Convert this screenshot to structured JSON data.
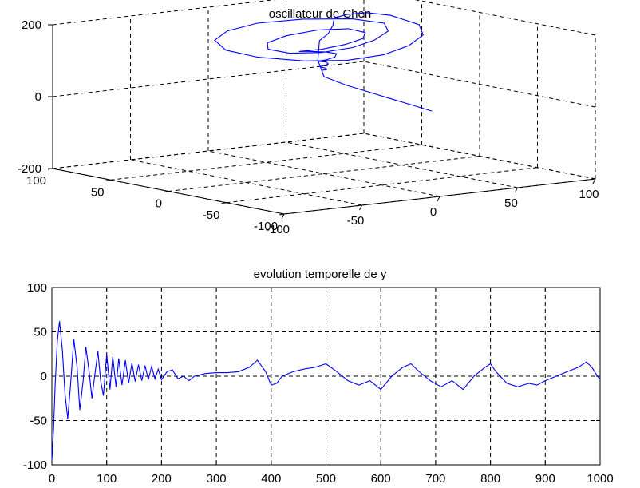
{
  "chart_data": [
    {
      "type": "line3d",
      "title": "oscillateur de Chen",
      "xlim": [
        -100,
        100
      ],
      "ylim": [
        -100,
        100
      ],
      "zlim": [
        -200,
        200
      ],
      "x_ticks": [
        "-100",
        "-50",
        "0",
        "50",
        "100"
      ],
      "y_ticks": [
        "-100",
        "-50",
        "0",
        "50",
        "100"
      ],
      "z_ticks": [
        "-200",
        "0",
        "200"
      ],
      "grid": true,
      "series": [
        {
          "color": "#0000ff",
          "points": [
            [
              -5,
              -100,
              40
            ],
            [
              -4,
              -80,
              45
            ],
            [
              -3,
              -60,
              50
            ],
            [
              -2,
              -40,
              55
            ],
            [
              -1,
              -20,
              60
            ],
            [
              0,
              0,
              70
            ],
            [
              2,
              8,
              110
            ],
            [
              6,
              12,
              160
            ],
            [
              16,
              18,
              170
            ],
            [
              28,
              30,
              180
            ],
            [
              40,
              45,
              185
            ],
            [
              56,
              56,
              180
            ],
            [
              72,
              60,
              175
            ],
            [
              80,
              50,
              170
            ],
            [
              76,
              20,
              165
            ],
            [
              60,
              -5,
              160
            ],
            [
              36,
              -25,
              155
            ],
            [
              10,
              -38,
              150
            ],
            [
              -15,
              -40,
              148
            ],
            [
              -35,
              -30,
              150
            ],
            [
              -50,
              -10,
              155
            ],
            [
              -52,
              15,
              160
            ],
            [
              -42,
              38,
              168
            ],
            [
              -25,
              50,
              178
            ],
            [
              -2,
              55,
              185
            ],
            [
              25,
              52,
              185
            ],
            [
              48,
              40,
              182
            ],
            [
              55,
              22,
              178
            ],
            [
              45,
              5,
              172
            ],
            [
              25,
              -10,
              166
            ],
            [
              5,
              -18,
              160
            ],
            [
              -15,
              -18,
              156
            ],
            [
              -28,
              -8,
              154
            ],
            [
              -30,
              8,
              156
            ],
            [
              -20,
              22,
              160
            ],
            [
              -2,
              30,
              166
            ],
            [
              18,
              30,
              172
            ],
            [
              32,
              22,
              174
            ],
            [
              34,
              10,
              170
            ],
            [
              25,
              0,
              164
            ],
            [
              10,
              -5,
              158
            ],
            [
              -5,
              -5,
              152
            ],
            [
              -12,
              2,
              146
            ],
            [
              -10,
              8,
              140
            ],
            [
              -2,
              10,
              135
            ],
            [
              6,
              6,
              132
            ],
            [
              8,
              0,
              130
            ],
            [
              4,
              -4,
              125
            ],
            [
              -2,
              -4,
              120
            ],
            [
              -4,
              0,
              115
            ],
            [
              0,
              3,
              110
            ],
            [
              3,
              2,
              108
            ],
            [
              2,
              -1,
              105
            ],
            [
              -1,
              -1,
              102
            ],
            [
              -2,
              1,
              98
            ],
            [
              0,
              2,
              95
            ],
            [
              2,
              1,
              92
            ],
            [
              1,
              -1,
              90
            ],
            [
              -1,
              0,
              88
            ]
          ]
        }
      ]
    },
    {
      "type": "line",
      "title": "evolution temporelle de y",
      "xlim": [
        0,
        1000
      ],
      "ylim": [
        -100,
        100
      ],
      "x_ticks": [
        "0",
        "100",
        "200",
        "300",
        "400",
        "500",
        "600",
        "700",
        "800",
        "900",
        "1000"
      ],
      "y_ticks": [
        "-100",
        "-50",
        "0",
        "50",
        "100"
      ],
      "grid": true,
      "series": [
        {
          "color": "#0000ff",
          "x": [
            0,
            3,
            6,
            10,
            14,
            19,
            24,
            29,
            34,
            40,
            46,
            51,
            57,
            62,
            68,
            73,
            78,
            84,
            89,
            94,
            100,
            106,
            111,
            117,
            122,
            128,
            134,
            140,
            146,
            152,
            158,
            164,
            170,
            176,
            182,
            188,
            194,
            200,
            210,
            220,
            230,
            240,
            250,
            260,
            280,
            300,
            320,
            340,
            360,
            375,
            390,
            400,
            410,
            420,
            440,
            460,
            480,
            500,
            520,
            540,
            560,
            580,
            600,
            620,
            640,
            655,
            670,
            690,
            710,
            730,
            750,
            770,
            790,
            800,
            810,
            830,
            850,
            870,
            885,
            900,
            920,
            940,
            960,
            975,
            985,
            995,
            1000
          ],
          "y": [
            -95,
            -60,
            -10,
            40,
            62,
            30,
            -20,
            -48,
            -10,
            42,
            10,
            -38,
            -5,
            33,
            5,
            -25,
            0,
            28,
            -5,
            -22,
            25,
            -15,
            22,
            -12,
            20,
            -10,
            18,
            -8,
            15,
            -6,
            13,
            -5,
            12,
            -4,
            11,
            -3,
            8,
            -4,
            5,
            7,
            -3,
            0,
            -5,
            0,
            3,
            4,
            4,
            5,
            10,
            18,
            5,
            -10,
            -8,
            0,
            5,
            8,
            10,
            14,
            5,
            -5,
            -10,
            -5,
            -15,
            0,
            10,
            14,
            5,
            -5,
            -12,
            -5,
            -15,
            0,
            10,
            14,
            5,
            -8,
            -12,
            -8,
            -10,
            -5,
            0,
            5,
            10,
            16,
            10,
            0,
            -3
          ]
        }
      ]
    }
  ]
}
